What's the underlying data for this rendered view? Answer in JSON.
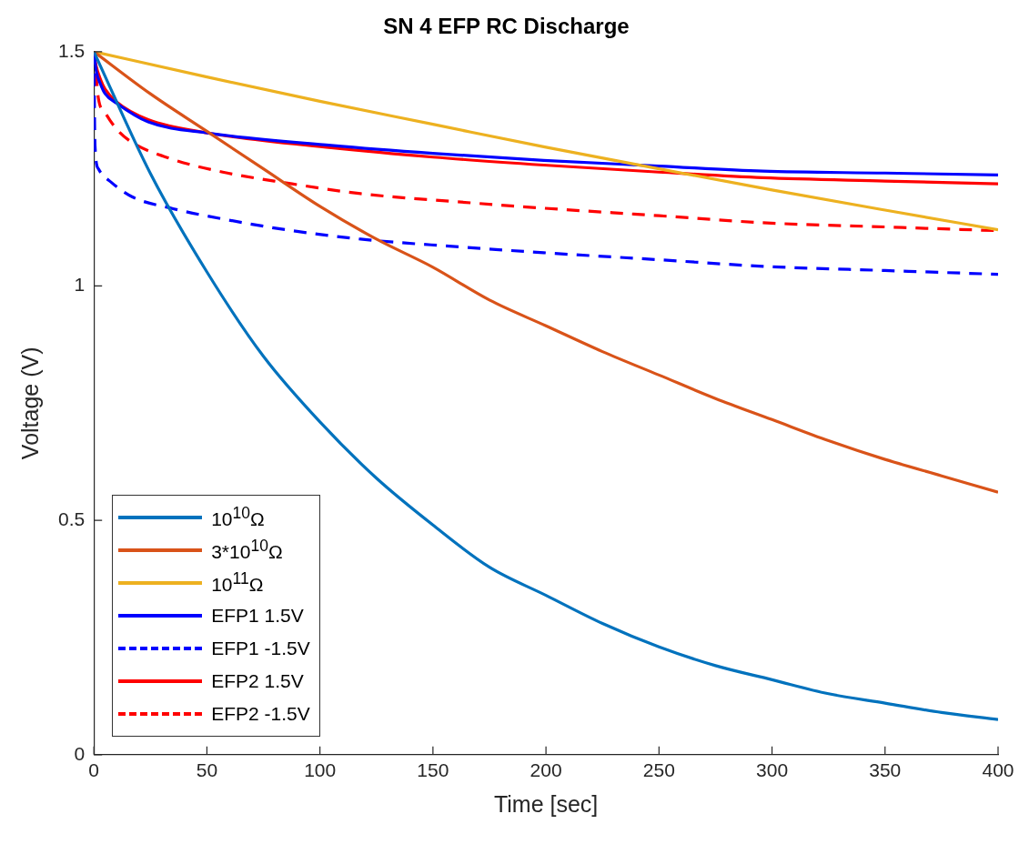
{
  "chart_data": {
    "type": "line",
    "title": "SN 4 EFP RC Discharge",
    "xlabel": "Time [sec]",
    "ylabel": "Voltage (V)",
    "xlim": [
      0,
      400
    ],
    "xticks": [
      0,
      50,
      100,
      150,
      200,
      250,
      300,
      350,
      400
    ],
    "ylim": [
      0,
      1.5
    ],
    "yticks": [
      0,
      0.5,
      1,
      1.5
    ],
    "legend": "bottom left",
    "marker": "none",
    "series": [
      {
        "name": "10$^{10}$Ω",
        "color": "#0072bd",
        "line_style": "solid",
        "x": [
          0,
          25,
          50,
          75,
          100,
          125,
          150,
          175,
          200,
          225,
          250,
          275,
          300,
          325,
          350,
          375,
          400
        ],
        "values": [
          1.5,
          1.24,
          1.03,
          0.85,
          0.71,
          0.59,
          0.49,
          0.4,
          0.34,
          0.28,
          0.23,
          0.19,
          0.16,
          0.13,
          0.11,
          0.09,
          0.075
        ]
      },
      {
        "name": "3*10$^{10}$Ω",
        "color": "#d95319",
        "line_style": "solid",
        "x": [
          0,
          25,
          50,
          75,
          100,
          125,
          150,
          175,
          200,
          225,
          250,
          275,
          300,
          325,
          350,
          375,
          400
        ],
        "values": [
          1.5,
          1.41,
          1.33,
          1.25,
          1.17,
          1.1,
          1.04,
          0.97,
          0.915,
          0.86,
          0.81,
          0.76,
          0.715,
          0.67,
          0.63,
          0.595,
          0.56
        ]
      },
      {
        "name": "10$^{11}$Ω",
        "color": "#edb120",
        "line_style": "solid",
        "x": [
          0,
          50,
          100,
          150,
          200,
          250,
          300,
          350,
          400
        ],
        "values": [
          1.5,
          1.446,
          1.394,
          1.345,
          1.296,
          1.25,
          1.205,
          1.162,
          1.12
        ]
      },
      {
        "name": "EFP1 1.5V",
        "color": "#0000ff",
        "line_style": "solid",
        "x": [
          0,
          1,
          3,
          5,
          10,
          24,
          51,
          105,
          150,
          199,
          250,
          296,
          350,
          400
        ],
        "values": [
          1.5,
          1.46,
          1.43,
          1.41,
          1.39,
          1.35,
          1.326,
          1.3,
          1.283,
          1.268,
          1.256,
          1.245,
          1.241,
          1.237
        ]
      },
      {
        "name": "EFP1 -1.5V",
        "color": "#0000ff",
        "line_style": "dashed",
        "x": [
          0,
          0.5,
          2,
          8,
          17,
          35,
          57,
          85,
          118,
          160,
          199,
          250,
          296,
          350,
          400
        ],
        "values": [
          1.5,
          1.3,
          1.25,
          1.22,
          1.19,
          1.165,
          1.143,
          1.12,
          1.1,
          1.084,
          1.071,
          1.056,
          1.042,
          1.033,
          1.025
        ]
      },
      {
        "name": "EFP2 1.5V",
        "color": "#ff0000",
        "line_style": "solid",
        "x": [
          0,
          1,
          3,
          5,
          10,
          24,
          51,
          105,
          150,
          199,
          250,
          296,
          350,
          400
        ],
        "values": [
          1.5,
          1.47,
          1.44,
          1.42,
          1.393,
          1.355,
          1.326,
          1.295,
          1.275,
          1.258,
          1.243,
          1.231,
          1.224,
          1.218
        ]
      },
      {
        "name": "EFP2 -1.5V",
        "color": "#ff0000",
        "line_style": "dashed",
        "x": [
          0,
          1,
          2,
          5,
          10,
          17,
          35,
          57,
          85,
          118,
          160,
          199,
          250,
          296,
          350,
          400
        ],
        "values": [
          1.5,
          1.45,
          1.4,
          1.37,
          1.335,
          1.306,
          1.27,
          1.243,
          1.22,
          1.197,
          1.18,
          1.166,
          1.15,
          1.135,
          1.126,
          1.118
        ]
      }
    ]
  }
}
